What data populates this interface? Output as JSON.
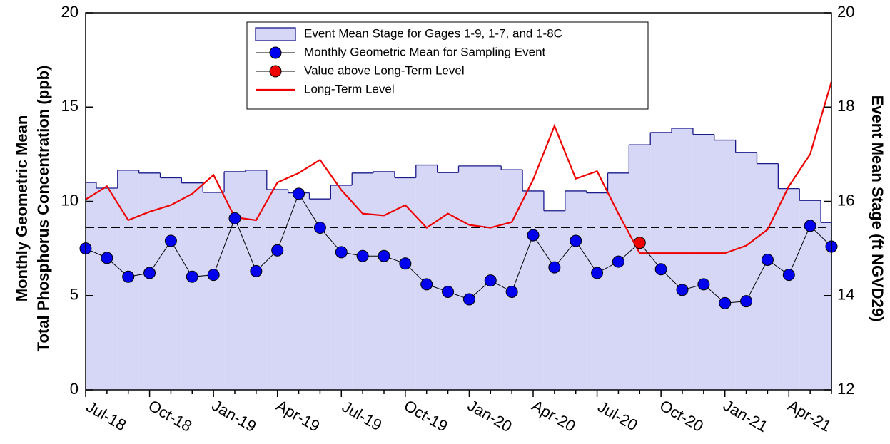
{
  "chart_data": {
    "type": "line",
    "y_label": [
      "Monthly Geometric Mean",
      "Total Phosphorus Concentration (ppb)"
    ],
    "y2_label": "Event Mean Stage (ft NGVD29)",
    "categories": [
      "Jul-18",
      null,
      null,
      "Oct-18",
      null,
      null,
      "Jan-19",
      null,
      null,
      "Apr-19",
      null,
      null,
      "Jul-19",
      null,
      null,
      "Oct-19",
      null,
      null,
      "Jan-20",
      null,
      null,
      "Apr-20",
      null,
      null,
      "Jul-20",
      null,
      null,
      "Oct-20",
      null,
      null,
      "Jan-21",
      null,
      null,
      "Apr-21",
      null,
      null
    ],
    "series": [
      {
        "name": "Event Mean Stage for Gages  1-9, 1-7, and 1-8C",
        "type": "step-area",
        "axis": "y2",
        "color": "#1a1a8c",
        "fill": "#d6d6f7",
        "values": [
          16.4,
          16.28,
          16.66,
          16.6,
          16.5,
          16.39,
          16.19,
          16.63,
          16.66,
          16.25,
          16.18,
          16.05,
          16.34,
          16.6,
          16.63,
          16.5,
          16.77,
          16.61,
          16.75,
          16.75,
          16.67,
          16.22,
          15.8,
          16.22,
          16.18,
          16.6,
          17.2,
          17.46,
          17.55,
          17.42,
          17.3,
          17.04,
          16.8,
          16.27,
          16.02,
          15.55
        ]
      },
      {
        "name": "Monthly Geometric Mean for Sampling Event",
        "type": "line-marker",
        "color": "#0000ee",
        "values": [
          7.5,
          7.0,
          6.0,
          6.2,
          7.9,
          6.0,
          6.1,
          9.1,
          6.3,
          7.4,
          10.4,
          8.6,
          7.3,
          7.1,
          7.1,
          6.7,
          5.6,
          5.2,
          4.8,
          5.8,
          5.2,
          8.2,
          6.5,
          7.9,
          6.2,
          6.8,
          7.8,
          6.4,
          5.3,
          5.6,
          4.6,
          4.7,
          6.9,
          6.1,
          8.7,
          7.6
        ]
      },
      {
        "name": "Long-Term Level",
        "type": "line",
        "color": "#ee0000",
        "values": [
          10.1,
          10.8,
          9.0,
          9.45,
          9.8,
          10.4,
          11.4,
          9.15,
          9.0,
          11.0,
          11.5,
          12.2,
          10.6,
          9.35,
          9.25,
          9.8,
          8.6,
          9.35,
          8.75,
          8.6,
          8.9,
          11.15,
          14.0,
          11.2,
          11.6,
          9.35,
          7.25,
          7.25,
          7.25,
          7.25,
          7.25,
          7.65,
          8.5,
          10.8,
          12.5,
          16.35
        ]
      }
    ],
    "highlight": {
      "name": "Value above Long-Term Level",
      "color": "#ee0000"
    },
    "reference_line": 8.6,
    "ylim": [
      0,
      20
    ],
    "yticks": [
      0,
      5,
      10,
      15,
      20
    ],
    "y2lim": [
      12,
      20
    ],
    "y2ticks": [
      12,
      14,
      16,
      18,
      20
    ],
    "legend": "top"
  }
}
